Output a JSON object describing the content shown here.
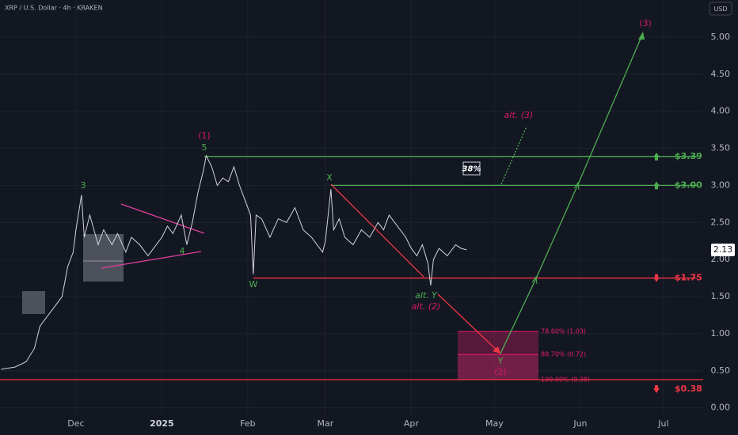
{
  "header": {
    "symbol": "XRP / U.S. Dollar · 4h · KRAKEN",
    "currency": "USD"
  },
  "chart_data": {
    "type": "line",
    "color": "#d1d4dc",
    "x": [
      -27,
      -22,
      -18,
      -15,
      -13,
      -10,
      -7,
      -5,
      -3,
      -1,
      0,
      2,
      3,
      5,
      8,
      10,
      13,
      15,
      18,
      20,
      23,
      26,
      28,
      31,
      33,
      35,
      38,
      40,
      42,
      44,
      46,
      47,
      49,
      51,
      53,
      55,
      57,
      59,
      61,
      63,
      64,
      65,
      67,
      70,
      73,
      76,
      79,
      82,
      85,
      87,
      89,
      90,
      92,
      93,
      95,
      97,
      100,
      103,
      106,
      109,
      111,
      113,
      116,
      119,
      121,
      123,
      125,
      127,
      128,
      129,
      131,
      134,
      137,
      139,
      141
    ],
    "values": [
      0.52,
      0.55,
      0.62,
      0.8,
      1.1,
      1.25,
      1.4,
      1.5,
      1.9,
      2.1,
      2.4,
      2.87,
      2.3,
      2.6,
      2.2,
      2.4,
      2.2,
      2.35,
      2.1,
      2.3,
      2.2,
      2.05,
      2.15,
      2.3,
      2.45,
      2.35,
      2.6,
      2.2,
      2.5,
      2.9,
      3.2,
      3.4,
      3.25,
      3.0,
      3.1,
      3.05,
      3.25,
      3.0,
      2.8,
      2.6,
      1.8,
      2.6,
      2.55,
      2.3,
      2.55,
      2.5,
      2.7,
      2.4,
      2.3,
      2.2,
      2.1,
      2.25,
      2.95,
      2.4,
      2.55,
      2.3,
      2.2,
      2.4,
      2.3,
      2.5,
      2.4,
      2.6,
      2.45,
      2.3,
      2.15,
      2.05,
      2.2,
      1.95,
      1.65,
      2.0,
      2.15,
      2.05,
      2.2,
      2.15,
      2.13
    ],
    "current_price": 2.13,
    "xlim": [
      -27.4,
      226.3
    ],
    "xticks": [
      {
        "value": 0,
        "label": "Dec"
      },
      {
        "value": 31,
        "label": "2025"
      },
      {
        "value": 62,
        "label": "Feb"
      },
      {
        "value": 90,
        "label": "Mar"
      },
      {
        "value": 121,
        "label": "Apr"
      },
      {
        "value": 151,
        "label": "May"
      },
      {
        "value": 182,
        "label": "Jun"
      },
      {
        "value": 212,
        "label": "Jul"
      }
    ],
    "ylim": [
      -0.1,
      5.5
    ],
    "yticks": [
      {
        "value": 0,
        "label": "0.00"
      },
      {
        "value": 0.5,
        "label": "0.50"
      },
      {
        "value": 1,
        "label": "1.00"
      },
      {
        "value": 1.5,
        "label": "1.50"
      },
      {
        "value": 2,
        "label": "2.00"
      },
      {
        "value": 2.5,
        "label": "2.50"
      },
      {
        "value": 3,
        "label": "3.00"
      },
      {
        "value": 3.5,
        "label": "3.50"
      },
      {
        "value": 4,
        "label": "4.00"
      },
      {
        "value": 4.5,
        "label": "4.50"
      },
      {
        "value": 5,
        "label": "5.00"
      }
    ],
    "grid": true,
    "levels": [
      {
        "value": 3.39,
        "label": "$3.39",
        "color": "#4caf50",
        "direction": "up"
      },
      {
        "value": 3.0,
        "label": "$3.00",
        "color": "#4caf50",
        "direction": "up"
      },
      {
        "value": 1.75,
        "label": "$1.75",
        "color": "#f23645",
        "direction": "down"
      },
      {
        "value": 0.38,
        "label": "$0.38",
        "color": "#f23645",
        "direction": "down"
      }
    ],
    "fib": [
      {
        "value": 1.03,
        "label": "78.60% (1.03)"
      },
      {
        "value": 0.72,
        "label": "88.70% (0.72)"
      },
      {
        "value": 0.38,
        "label": "100.00% (0.38)"
      }
    ],
    "waves": [
      "(1)",
      "5",
      "3",
      "4",
      "W",
      "X",
      "alt. Y",
      "alt. (2)",
      "Y",
      "(2)",
      "(3)",
      "alt. (3)",
      "38%"
    ]
  }
}
